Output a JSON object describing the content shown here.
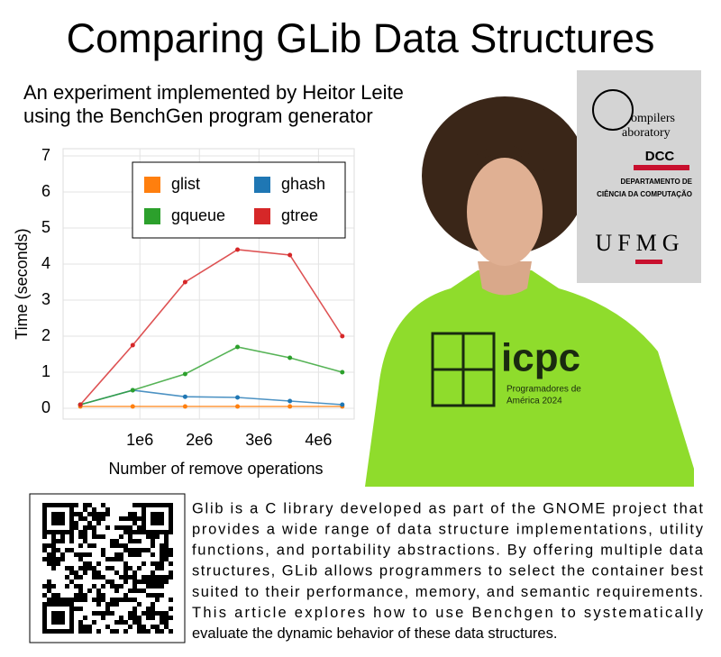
{
  "title": "Comparing GLib Data Structures",
  "subtitle": [
    "An experiment implemented by Heitor Leite",
    "using the BenchGen program generator"
  ],
  "chart_data": {
    "type": "line",
    "xlabel": "Number of remove operations",
    "ylabel": "Time (seconds)",
    "x": [
      0,
      880000,
      1760000,
      2640000,
      3520000,
      4400000
    ],
    "series": [
      {
        "name": "glist",
        "color": "#ff7f0e",
        "values": [
          0.05,
          0.05,
          0.05,
          0.05,
          0.05,
          0.05
        ]
      },
      {
        "name": "ghash",
        "color": "#1f77b4",
        "values": [
          0.1,
          0.5,
          0.32,
          0.3,
          0.2,
          0.1
        ]
      },
      {
        "name": "gqueue",
        "color": "#2ca02c",
        "values": [
          0.1,
          0.5,
          0.95,
          1.7,
          1.4,
          1.0
        ]
      },
      {
        "name": "gtree",
        "color": "#d62728",
        "values": [
          0.1,
          1.75,
          3.5,
          4.4,
          4.25,
          2.0
        ]
      }
    ],
    "xlim": [
      -290000,
      4600000
    ],
    "ylim": [
      -0.3,
      7.2
    ],
    "xticks": [
      {
        "value": 1000000,
        "label": "1e6"
      },
      {
        "value": 2000000,
        "label": "2e6"
      },
      {
        "value": 3000000,
        "label": "3e6"
      },
      {
        "value": 4000000,
        "label": "4e6"
      }
    ],
    "yticks": [
      0,
      1,
      2,
      3,
      4,
      5,
      6,
      7
    ],
    "grid": true,
    "legend": "top"
  },
  "logo": {
    "lab": [
      "ompilers",
      "aboratory"
    ],
    "dept_short": "DCC",
    "dept": [
      "DEPARTAMENTO DE",
      "CIÊNCIA DA COMPUTAÇÃO"
    ],
    "university": "UFMG"
  },
  "shirt": {
    "brand": "icpc",
    "text": [
      "Programadores de",
      "América 2024"
    ]
  },
  "description": [
    "Glib is a C library developed as part of the GNOME project that",
    "provides a wide range of data structure implementations, utility",
    "functions, and portability abstractions. By offering multiple data",
    "structures, GLib allows programmers to select the container best",
    "suited to their performance, memory, and semantic requirements.",
    "This article explores how to use Benchgen to systematically",
    "evaluate the dynamic behavior of these data structures."
  ]
}
